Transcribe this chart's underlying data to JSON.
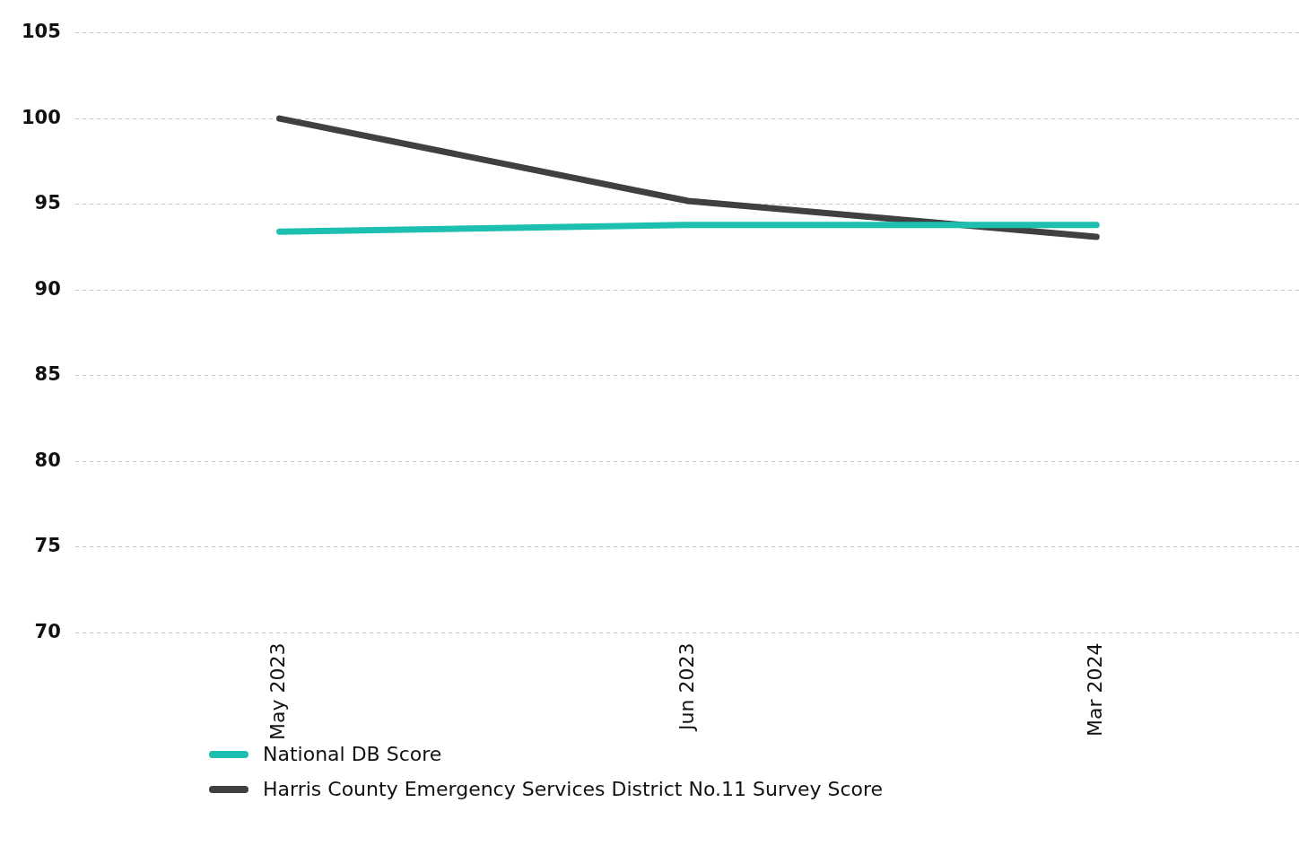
{
  "chart_data": {
    "type": "line",
    "categories": [
      "May 2023",
      "Jun 2023",
      "Mar 2024"
    ],
    "series": [
      {
        "name": "National DB Score",
        "color": "#1dbfb0",
        "values": [
          93.4,
          93.8,
          93.8
        ]
      },
      {
        "name": "Harris County Emergency Services District No.11 Survey Score",
        "color": "#404040",
        "values": [
          100,
          95.2,
          93.1
        ]
      }
    ],
    "ylim": [
      70,
      105
    ],
    "yticks": [
      70,
      75,
      80,
      85,
      90,
      95,
      100,
      105
    ],
    "grid": "y",
    "legend": "bottom",
    "marker": "none",
    "line_style": "solid"
  }
}
